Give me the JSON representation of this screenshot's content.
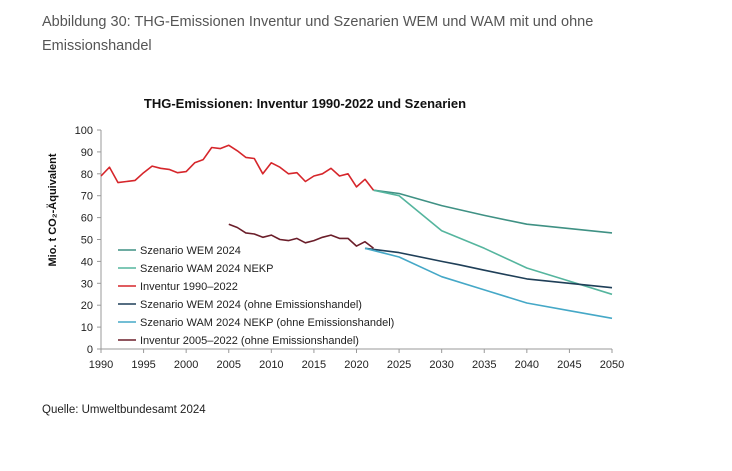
{
  "figure": {
    "caption": "Abbildung 30: THG-Emissionen Inventur und Szenarien WEM und WAM mit und ohne Emissionshandel",
    "source": "Quelle: Umweltbundesamt 2024"
  },
  "chart_data": {
    "type": "line",
    "title": "THG-Emissionen: Inventur 1990-2022 und Szenarien",
    "xlabel": "",
    "ylabel": "Mio. t CO₂-Äquivalent",
    "xlim": [
      1990,
      2050
    ],
    "ylim": [
      0,
      100
    ],
    "x_ticks": [
      1990,
      1995,
      2000,
      2005,
      2010,
      2015,
      2020,
      2025,
      2030,
      2035,
      2040,
      2045,
      2050
    ],
    "y_ticks": [
      0,
      10,
      20,
      30,
      40,
      50,
      60,
      70,
      80,
      90,
      100
    ],
    "legend_position": "left",
    "grid": false,
    "series": [
      {
        "name": "Szenario WEM 2024",
        "color": "#3f9184",
        "x": [
          2022,
          2025,
          2030,
          2035,
          2040,
          2045,
          2050
        ],
        "y": [
          72.5,
          71,
          65.5,
          61,
          57,
          55,
          53
        ]
      },
      {
        "name": "Szenario WAM 2024 NEKP",
        "color": "#55b59e",
        "x": [
          2022,
          2025,
          2030,
          2035,
          2040,
          2045,
          2050
        ],
        "y": [
          72.5,
          70,
          54,
          46,
          37,
          31,
          25
        ]
      },
      {
        "name": "Inventur 1990–2022",
        "color": "#d6262b",
        "x": [
          1990,
          1991,
          1992,
          1993,
          1994,
          1995,
          1996,
          1997,
          1998,
          1999,
          2000,
          2001,
          2002,
          2003,
          2004,
          2005,
          2006,
          2007,
          2008,
          2009,
          2010,
          2011,
          2012,
          2013,
          2014,
          2015,
          2016,
          2017,
          2018,
          2019,
          2020,
          2021,
          2022
        ],
        "y": [
          79,
          83,
          76,
          76.5,
          77,
          80.5,
          83.5,
          82.5,
          82,
          80.5,
          81,
          85,
          86.5,
          92,
          91.5,
          93,
          90.5,
          87.5,
          87,
          80,
          85,
          83,
          80,
          80.5,
          76.5,
          79,
          80,
          82.5,
          79,
          80,
          74,
          77.5,
          72.5
        ]
      },
      {
        "name": "Szenario WEM 2024 (ohne Emissionshandel)",
        "color": "#1f3f58",
        "x": [
          2021,
          2025,
          2030,
          2032,
          2035,
          2040,
          2045,
          2050
        ],
        "y": [
          46,
          44,
          40,
          38.5,
          36,
          32,
          30,
          28
        ]
      },
      {
        "name": "Szenario WAM 2024 NEKP (ohne Emissionshandel)",
        "color": "#45a8c7",
        "x": [
          2021,
          2025,
          2030,
          2035,
          2040,
          2045,
          2050
        ],
        "y": [
          46,
          42,
          33,
          27,
          21,
          17.5,
          14
        ]
      },
      {
        "name": "Inventur 2005–2022 (ohne Emissionshandel)",
        "color": "#6b1e2a",
        "x": [
          2005,
          2006,
          2007,
          2008,
          2009,
          2010,
          2011,
          2012,
          2013,
          2014,
          2015,
          2016,
          2017,
          2018,
          2019,
          2020,
          2021,
          2022
        ],
        "y": [
          57,
          55.5,
          53,
          52.5,
          51,
          52,
          50,
          49.5,
          50.5,
          48.5,
          49.5,
          51,
          52,
          50.5,
          50.5,
          47,
          49,
          46
        ]
      }
    ]
  }
}
